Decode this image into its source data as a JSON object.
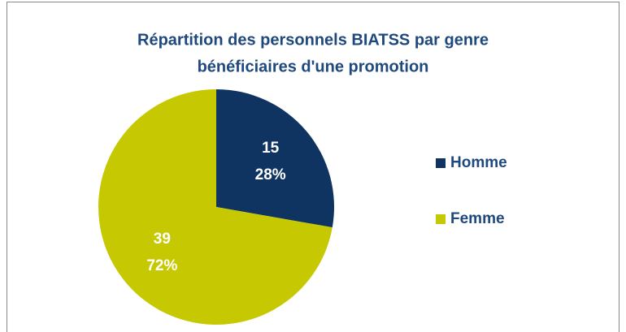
{
  "chart_data": {
    "type": "pie",
    "title": [
      "Répartition des personnels BIATSS par genre",
      "bénéficiaires d'une promotion"
    ],
    "categories": [
      "Homme",
      "Femme"
    ],
    "values": [
      15,
      39
    ],
    "percent_labels": [
      "28%",
      "72%"
    ],
    "colors": [
      "#0f3461",
      "#c6c902"
    ],
    "legend": "right"
  }
}
